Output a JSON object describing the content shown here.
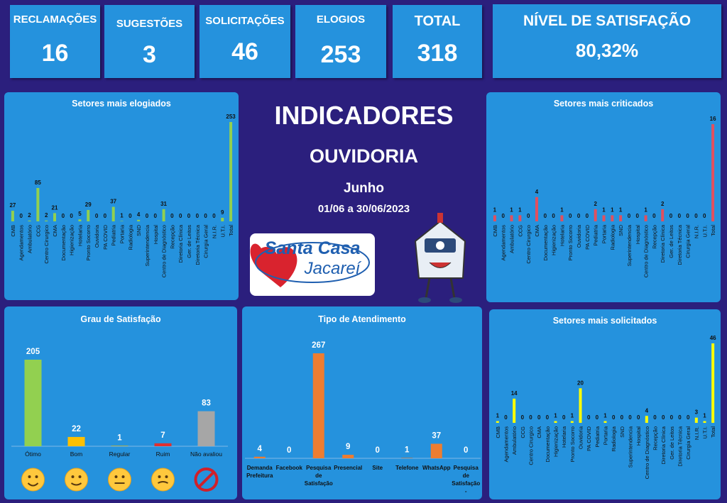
{
  "header": {
    "kpis": [
      {
        "label": "RECLAMAÇÕES",
        "value": 16
      },
      {
        "label": "SUGESTÕES",
        "value": 3
      },
      {
        "label": "SOLICITAÇÕES",
        "value": 46
      },
      {
        "label": "ELOGIOS",
        "value": 253
      },
      {
        "label": "TOTAL",
        "value": 318
      }
    ],
    "satisfaction": {
      "label": "NÍVEL DE SATISFAÇÃO",
      "value": "80,32%"
    }
  },
  "center": {
    "title": "INDICADORES",
    "subtitle": "OUVIDORIA",
    "month": "Junho",
    "period": "01/06 a 30/06/2023"
  },
  "logo": {
    "line1": "Santa Casa",
    "line2": "Jacareí"
  },
  "chart_data": [
    {
      "type": "bar",
      "title": "Setores mais elogiados",
      "color": "#92d050",
      "categories": [
        "CMB",
        "Agendamentos",
        "Ambulatório",
        "CCG",
        "Centro Cirurgico",
        "CMA",
        "Documentação",
        "Higienização",
        "Hotelaria",
        "Pronto Socorro",
        "Ouvidoria",
        "PA COVID",
        "Pediatria",
        "Portaria",
        "Radiologia",
        "SND",
        "Superintendencia",
        "Hospital",
        "Centro de Diagnóstico",
        "Recepção",
        "Diretoria Clínica",
        "Ger. de Leitos",
        "Diretoria Técnica",
        "Cirurgia Geral",
        "N.I.R.",
        "U.T.I.",
        "Total"
      ],
      "values": [
        27,
        0,
        2,
        85,
        2,
        21,
        0,
        0,
        5,
        29,
        0,
        0,
        37,
        1,
        0,
        4,
        0,
        0,
        31,
        0,
        0,
        0,
        0,
        0,
        0,
        9,
        253
      ]
    },
    {
      "type": "bar",
      "title": "Setores mais criticados",
      "color": "#e0505f",
      "categories": [
        "CMB",
        "Agendamentos",
        "Ambulatório",
        "CCG",
        "Centro Cirurgico",
        "CMA",
        "Documentação",
        "Higienização",
        "Hotelaria",
        "Pronto Socorro",
        "Ouvidoria",
        "PA COVID",
        "Pediatria",
        "Portaria",
        "Radiologia",
        "SND",
        "Superintendencia",
        "Hospital",
        "Centro de Diagnóstico",
        "Recepção",
        "Diretoria Clínica",
        "Ger. de Leitos",
        "Diretoria Técnica",
        "Cirurgia Geral",
        "N.I.R.",
        "U.T.I.",
        "Total"
      ],
      "values": [
        1,
        0,
        1,
        1,
        0,
        4,
        0,
        0,
        1,
        0,
        0,
        0,
        2,
        1,
        1,
        1,
        0,
        0,
        1,
        0,
        2,
        0,
        0,
        0,
        0,
        0,
        16
      ]
    },
    {
      "type": "bar",
      "title": "Grau de Satisfação",
      "categories": [
        "Ótimo",
        "Bom",
        "Regular",
        "Ruim",
        "Não avaliou"
      ],
      "values": [
        205,
        22,
        1,
        7,
        83
      ],
      "colors": [
        "#92d050",
        "#ffc000",
        "#ffc000",
        "#e03030",
        "#a6a6a6"
      ]
    },
    {
      "type": "bar",
      "title": "Tipo de Atendimento",
      "color": "#ed7d31",
      "categories": [
        "Demanda Prefeitura",
        "Facebook",
        "Pesquisa de Satisfação",
        "Presencial",
        "Site",
        "Telefone",
        "WhatsApp",
        "Pesquisa de Satisfação - Prefeitura"
      ],
      "values": [
        4,
        0,
        267,
        9,
        0,
        1,
        37,
        0
      ]
    },
    {
      "type": "bar",
      "title": "Setores mais solicitados",
      "color": "#ffff00",
      "categories": [
        "CMB",
        "Agendamentos",
        "Ambulatório",
        "CCG",
        "Centro Cirurgico",
        "CMA",
        "Documentação",
        "Higienização",
        "Hotelaria",
        "Pronto Socorro",
        "Ouvidoria",
        "PA COVID",
        "Pediatria",
        "Portaria",
        "Radiologia",
        "SND",
        "Superintendencia",
        "Hospital",
        "Centro de Diagnóstico",
        "Recepção",
        "Diretoria Clínica",
        "Ger. de Leitos",
        "Diretoria Técnica",
        "Cirurgia Geral",
        "N.I.R.",
        "U.T.I.",
        "Total"
      ],
      "values": [
        1,
        0,
        14,
        0,
        0,
        0,
        0,
        1,
        0,
        1,
        20,
        0,
        0,
        1,
        0,
        0,
        0,
        0,
        4,
        0,
        0,
        0,
        0,
        0,
        3,
        1,
        46
      ]
    }
  ]
}
